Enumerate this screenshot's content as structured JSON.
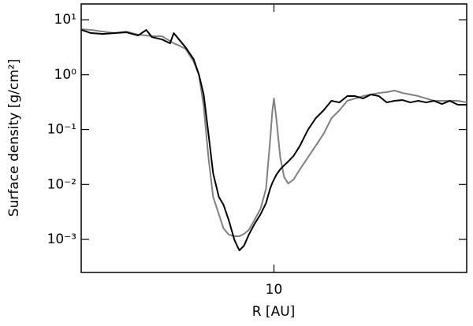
{
  "chart_data": {
    "type": "line",
    "xlabel": "R [AU]",
    "ylabel": "Surface density [g/cm²]",
    "xscale": "log",
    "yscale": "log",
    "xlim": [
      3.2,
      31.25
    ],
    "ylim": [
      0.00025,
      19.4
    ],
    "xticks": [
      10
    ],
    "yticks": [
      {
        "value": 10,
        "label": "10¹"
      },
      {
        "value": 1,
        "label": "10⁰"
      },
      {
        "value": 0.1,
        "label": "10⁻¹"
      },
      {
        "value": 0.01,
        "label": "10⁻²"
      },
      {
        "value": 0.001,
        "label": "10⁻³"
      }
    ],
    "x": [
      3.21,
      3.39,
      3.64,
      3.9,
      4.18,
      4.48,
      4.7,
      4.86,
      5.16,
      5.41,
      5.53,
      5.66,
      5.93,
      6.22,
      6.42,
      6.6,
      6.79,
      6.98,
      7.22,
      7.42,
      7.66,
      7.92,
      8.15,
      8.38,
      8.62,
      8.9,
      9.24,
      9.54,
      9.77,
      9.91,
      10,
      10.14,
      10.38,
      10.62,
      10.88,
      11.23,
      11.66,
      12.22,
      12.8,
      13.41,
      14.05,
      14.72,
      15.43,
      16.16,
      16.93,
      17.74,
      18.59,
      19.48,
      20.4,
      21.38,
      22.4,
      23.47,
      24.59,
      25.76,
      26.99,
      28.28,
      29.63,
      31.33
    ],
    "series": [
      {
        "color": "#808080",
        "values": [
          6.73,
          6.52,
          6.09,
          5.71,
          6.09,
          5.35,
          5.17,
          5.0,
          5.0,
          4.1,
          3.72,
          3.48,
          2.95,
          1.74,
          0.99,
          0.265,
          0.031,
          0.00594,
          0.00288,
          0.00159,
          0.00122,
          0.00114,
          0.00114,
          0.00126,
          0.00149,
          0.00221,
          0.00362,
          0.00828,
          0.06,
          0.224,
          0.368,
          0.161,
          0.031,
          0.0136,
          0.0104,
          0.0123,
          0.0189,
          0.031,
          0.0508,
          0.0834,
          0.161,
          0.224,
          0.334,
          0.368,
          0.407,
          0.435,
          0.464,
          0.48,
          0.513,
          0.464,
          0.435,
          0.407,
          0.368,
          0.334,
          0.334,
          0.334,
          0.334,
          0.312
        ]
      },
      {
        "color": "#000000",
        "values": [
          6.52,
          5.71,
          5.52,
          5.71,
          5.9,
          5.17,
          6.52,
          4.84,
          4.38,
          3.72,
          5.71,
          4.68,
          3.15,
          1.92,
          0.99,
          0.435,
          0.0834,
          0.016,
          0.00594,
          0.00428,
          0.00221,
          0.00097,
          0.00063,
          0.00077,
          0.00122,
          0.00187,
          0.00288,
          0.00456,
          0.00828,
          0.0108,
          0.0123,
          0.015,
          0.0189,
          0.0223,
          0.0262,
          0.0331,
          0.0508,
          0.0984,
          0.161,
          0.224,
          0.334,
          0.312,
          0.407,
          0.407,
          0.368,
          0.435,
          0.407,
          0.312,
          0.334,
          0.345,
          0.312,
          0.334,
          0.312,
          0.334,
          0.292,
          0.334,
          0.283,
          0.283
        ]
      }
    ]
  }
}
